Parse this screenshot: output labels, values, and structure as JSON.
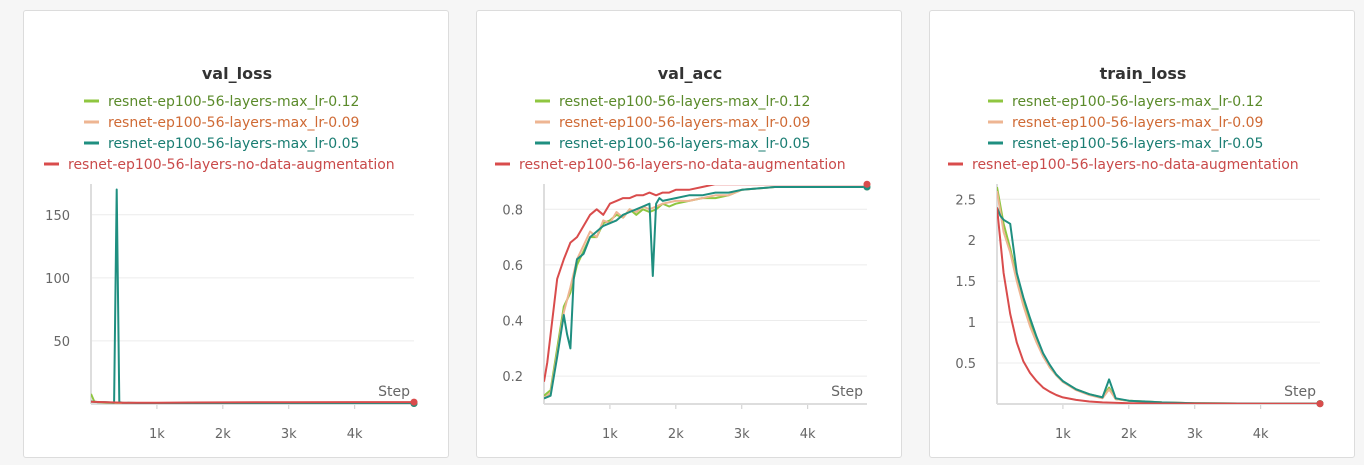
{
  "series_colors": [
    "#8fc640",
    "#eeb592",
    "#1f8f80",
    "#d94c4c"
  ],
  "legend_text_colors": [
    "#5a8a2a",
    "#cf6a35",
    "#1a7d72",
    "#c94a4a"
  ],
  "chart_data": [
    {
      "type": "line",
      "title": "val_loss",
      "xlabel": "Step",
      "xlim": [
        0,
        4900
      ],
      "ylim": [
        0,
        172
      ],
      "xticks": [
        1000,
        2000,
        3000,
        4000
      ],
      "xtick_labels": [
        "1k",
        "2k",
        "3k",
        "4k"
      ],
      "yticks": [
        50,
        100,
        150
      ],
      "ytick_labels": [
        "50",
        "100",
        "150"
      ],
      "grid": true,
      "legend": "top",
      "series": [
        {
          "name": "resnet-ep100-56-layers-max_lr-0.12",
          "x": [
            0,
            50,
            100,
            150,
            200,
            300,
            400,
            600,
            800,
            1000,
            1500,
            2000,
            3000,
            4000,
            4900
          ],
          "y": [
            8,
            2,
            1.5,
            1.2,
            1.0,
            0.9,
            0.8,
            0.7,
            0.6,
            0.5,
            0.45,
            0.4,
            0.35,
            0.35,
            0.35
          ]
        },
        {
          "name": "resnet-ep100-56-layers-max_lr-0.09",
          "x": [
            0,
            100,
            200,
            300,
            400,
            500,
            700,
            1000,
            1500,
            2000,
            3000,
            4000,
            4900
          ],
          "y": [
            2,
            1.5,
            1.2,
            1.0,
            0.9,
            0.8,
            0.7,
            0.6,
            0.5,
            0.45,
            0.4,
            0.35,
            0.35
          ]
        },
        {
          "name": "resnet-ep100-56-layers-max_lr-0.05",
          "x": [
            0,
            100,
            200,
            300,
            350,
            390,
            430,
            470,
            700,
            1000,
            1500,
            2000,
            3000,
            4000,
            4900
          ],
          "y": [
            2,
            1.5,
            1.5,
            1.2,
            1.0,
            170,
            1.5,
            1.0,
            0.8,
            0.6,
            0.5,
            0.45,
            0.4,
            0.35,
            0.35
          ]
        },
        {
          "name": "resnet-ep100-56-layers-no-data-augmentation",
          "x": [
            0,
            500,
            1000,
            1500,
            2000,
            3000,
            4000,
            4900
          ],
          "y": [
            1.8,
            1.0,
            1.0,
            1.2,
            1.3,
            1.4,
            1.5,
            1.5
          ]
        }
      ]
    },
    {
      "type": "line",
      "title": "val_acc",
      "xlabel": "Step",
      "xlim": [
        0,
        4900
      ],
      "ylim": [
        0.1,
        0.88
      ],
      "xticks": [
        1000,
        2000,
        3000,
        4000
      ],
      "xtick_labels": [
        "1k",
        "2k",
        "3k",
        "4k"
      ],
      "yticks": [
        0.2,
        0.4,
        0.6,
        0.8
      ],
      "ytick_labels": [
        "0.2",
        "0.4",
        "0.6",
        "0.8"
      ],
      "grid": true,
      "legend": "top",
      "series": [
        {
          "name": "resnet-ep100-56-layers-max_lr-0.12",
          "x": [
            0,
            100,
            200,
            300,
            400,
            500,
            600,
            700,
            800,
            900,
            1000,
            1100,
            1200,
            1300,
            1400,
            1500,
            1600,
            1700,
            1800,
            1900,
            2000,
            2200,
            2400,
            2600,
            2800,
            3000,
            3500,
            4000,
            4500,
            4900
          ],
          "y": [
            0.13,
            0.15,
            0.3,
            0.45,
            0.5,
            0.6,
            0.65,
            0.7,
            0.7,
            0.75,
            0.76,
            0.78,
            0.77,
            0.8,
            0.78,
            0.8,
            0.79,
            0.8,
            0.82,
            0.81,
            0.82,
            0.83,
            0.84,
            0.84,
            0.85,
            0.87,
            0.88,
            0.88,
            0.88,
            0.88
          ]
        },
        {
          "name": "resnet-ep100-56-layers-max_lr-0.09",
          "x": [
            0,
            100,
            200,
            300,
            400,
            500,
            600,
            700,
            800,
            900,
            1000,
            1100,
            1200,
            1300,
            1400,
            1500,
            1600,
            1700,
            1800,
            2000,
            2200,
            2400,
            2600,
            2800,
            3000,
            3500,
            4000,
            4500,
            4900
          ],
          "y": [
            0.12,
            0.14,
            0.28,
            0.43,
            0.52,
            0.62,
            0.67,
            0.72,
            0.7,
            0.76,
            0.75,
            0.79,
            0.77,
            0.8,
            0.79,
            0.81,
            0.8,
            0.81,
            0.82,
            0.83,
            0.83,
            0.84,
            0.85,
            0.85,
            0.87,
            0.88,
            0.88,
            0.88,
            0.88
          ]
        },
        {
          "name": "resnet-ep100-56-layers-max_lr-0.05",
          "x": [
            0,
            100,
            200,
            300,
            350,
            400,
            450,
            500,
            600,
            700,
            800,
            900,
            1000,
            1100,
            1200,
            1300,
            1400,
            1500,
            1600,
            1650,
            1700,
            1750,
            1800,
            2000,
            2200,
            2400,
            2600,
            2800,
            3000,
            3500,
            4000,
            4500,
            4900
          ],
          "y": [
            0.12,
            0.13,
            0.27,
            0.42,
            0.35,
            0.3,
            0.55,
            0.62,
            0.64,
            0.7,
            0.72,
            0.74,
            0.75,
            0.76,
            0.78,
            0.79,
            0.8,
            0.81,
            0.82,
            0.56,
            0.82,
            0.84,
            0.83,
            0.84,
            0.85,
            0.85,
            0.86,
            0.86,
            0.87,
            0.88,
            0.88,
            0.88,
            0.88
          ]
        },
        {
          "name": "resnet-ep100-56-layers-no-data-augmentation",
          "x": [
            0,
            50,
            100,
            150,
            200,
            300,
            400,
            500,
            600,
            700,
            800,
            900,
            1000,
            1100,
            1200,
            1300,
            1400,
            1500,
            1600,
            1700,
            1800,
            1900,
            2000,
            2200,
            2400,
            2600,
            2800,
            3000,
            3500,
            4000,
            4500,
            4900
          ],
          "y": [
            0.18,
            0.25,
            0.35,
            0.45,
            0.55,
            0.62,
            0.68,
            0.7,
            0.74,
            0.78,
            0.8,
            0.78,
            0.82,
            0.83,
            0.84,
            0.84,
            0.85,
            0.85,
            0.86,
            0.85,
            0.86,
            0.86,
            0.87,
            0.87,
            0.88,
            0.89,
            0.89,
            0.89,
            0.89,
            0.89,
            0.89,
            0.89
          ]
        }
      ]
    },
    {
      "type": "line",
      "title": "train_loss",
      "xlabel": "Step",
      "xlim": [
        0,
        4900
      ],
      "ylim": [
        0,
        2.65
      ],
      "xticks": [
        1000,
        2000,
        3000,
        4000
      ],
      "xtick_labels": [
        "1k",
        "2k",
        "3k",
        "4k"
      ],
      "yticks": [
        0.5,
        1,
        1.5,
        2,
        2.5
      ],
      "ytick_labels": [
        "0.5",
        "1",
        "1.5",
        "2",
        "2.5"
      ],
      "grid": true,
      "legend": "top",
      "series": [
        {
          "name": "resnet-ep100-56-layers-max_lr-0.12",
          "x": [
            0,
            100,
            200,
            300,
            400,
            500,
            600,
            700,
            800,
            900,
            1000,
            1200,
            1400,
            1600,
            1700,
            1800,
            2000,
            2500,
            3000,
            4000,
            4900
          ],
          "y": [
            2.65,
            2.2,
            1.9,
            1.55,
            1.25,
            1.0,
            0.8,
            0.6,
            0.45,
            0.35,
            0.27,
            0.18,
            0.12,
            0.08,
            0.2,
            0.06,
            0.04,
            0.02,
            0.01,
            0.005,
            0.005
          ]
        },
        {
          "name": "resnet-ep100-56-layers-max_lr-0.09",
          "x": [
            0,
            100,
            200,
            300,
            400,
            500,
            600,
            700,
            800,
            900,
            1000,
            1200,
            1400,
            1600,
            1700,
            1800,
            2000,
            2500,
            3000,
            4000,
            4900
          ],
          "y": [
            2.6,
            2.1,
            1.85,
            1.5,
            1.2,
            0.95,
            0.75,
            0.58,
            0.45,
            0.35,
            0.27,
            0.17,
            0.11,
            0.07,
            0.18,
            0.06,
            0.04,
            0.02,
            0.01,
            0.005,
            0.005
          ]
        },
        {
          "name": "resnet-ep100-56-layers-max_lr-0.05",
          "x": [
            0,
            50,
            100,
            200,
            300,
            400,
            500,
            600,
            700,
            800,
            900,
            1000,
            1200,
            1400,
            1600,
            1700,
            1800,
            2000,
            2500,
            3000,
            4000,
            4900
          ],
          "y": [
            2.4,
            2.3,
            2.25,
            2.2,
            1.6,
            1.3,
            1.05,
            0.82,
            0.62,
            0.48,
            0.36,
            0.28,
            0.18,
            0.12,
            0.08,
            0.3,
            0.07,
            0.04,
            0.02,
            0.01,
            0.005,
            0.005
          ]
        },
        {
          "name": "resnet-ep100-56-layers-no-data-augmentation",
          "x": [
            0,
            100,
            200,
            300,
            400,
            500,
            600,
            700,
            800,
            900,
            1000,
            1200,
            1400,
            1600,
            2000,
            2500,
            3000,
            4000,
            4900
          ],
          "y": [
            2.4,
            1.6,
            1.1,
            0.75,
            0.52,
            0.38,
            0.28,
            0.2,
            0.15,
            0.11,
            0.08,
            0.05,
            0.03,
            0.02,
            0.01,
            0.005,
            0.005,
            0.003,
            0.003
          ]
        }
      ]
    }
  ]
}
